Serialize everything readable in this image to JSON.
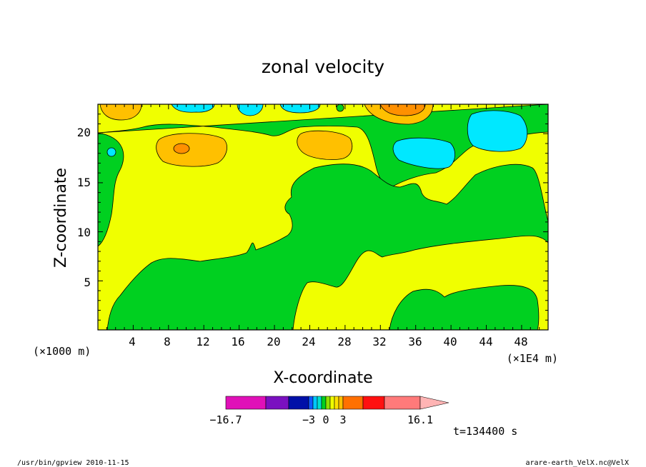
{
  "chart_data": {
    "type": "contour",
    "title": "zonal velocity",
    "xlabel": "X-coordinate",
    "ylabel": "Z-coordinate",
    "x_unit_label": "(×1E4 m)",
    "y_unit_label": "(×1000 m)",
    "xlim": [
      0,
      51
    ],
    "ylim": [
      0,
      23
    ],
    "x_ticks": [
      "4",
      "8",
      "12",
      "16",
      "20",
      "24",
      "28",
      "32",
      "36",
      "40",
      "44",
      "48"
    ],
    "y_ticks": [
      "5",
      "10",
      "15",
      "20"
    ],
    "colorbar": {
      "min_label": "−16.7",
      "max_label": "16.1",
      "inner_labels": [
        "−3",
        "0",
        "3"
      ],
      "levels": [
        -16.7,
        -13,
        -9.3,
        -5.6,
        -4.5,
        -3.75,
        -3,
        -1.5,
        0,
        1.5,
        3,
        3.75,
        4.5,
        5.6,
        9.3,
        13,
        16.1
      ],
      "colors": [
        "#e010b8",
        "#7a10c0",
        "#0010a8",
        "#1058ff",
        "#00c8ff",
        "#00e0d0",
        "#00d020",
        "#90e000",
        "#f0ff00",
        "#ffe000",
        "#ffc000",
        "#ff9000",
        "#ff6000",
        "#ff0000",
        "#ff7a7a",
        "#ffb4b4"
      ]
    },
    "regions": [
      {
        "value_class": "0 to 1.5",
        "color": "#f0ff00"
      },
      {
        "value_class": "-1.5 to 0",
        "color": "#00d020"
      },
      {
        "value_class": "-3 to -1.5",
        "color": "#00e0ff"
      },
      {
        "value_class": "1.5 to 3",
        "color": "#ffc000"
      },
      {
        "value_class": "3 to 4.5",
        "color": "#ff9000"
      }
    ]
  },
  "annotations": {
    "time": "t=134400 s",
    "footer_left": "/usr/bin/gpview  2010-11-15",
    "footer_right": "arare-earth_VelX.nc@VelX"
  },
  "colors": {
    "yellow": "#f0ff00",
    "green": "#00d020",
    "cyan": "#00e8ff",
    "orange": "#ffc000",
    "dark_orange": "#ff9000"
  }
}
